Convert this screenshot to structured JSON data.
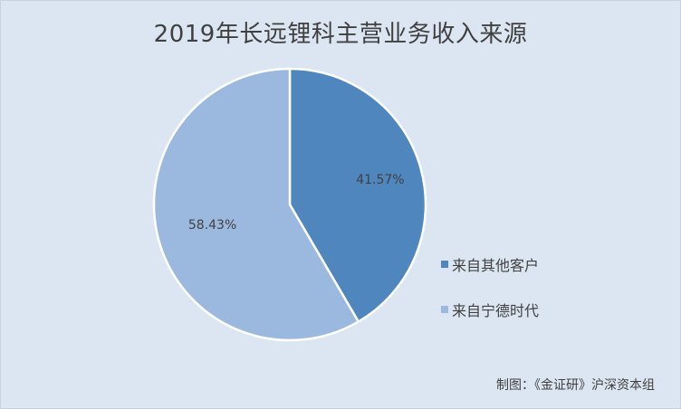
{
  "chart_data": {
    "type": "pie",
    "title": "2019年长远锂科主营业务收入来源",
    "slices": [
      {
        "label": "来自其他客户",
        "value": 41.57,
        "value_label": "41.57%",
        "color": "#4f86bd"
      },
      {
        "label": "来自宁德时代",
        "value": 58.43,
        "value_label": "58.43%",
        "color": "#9bb9df"
      }
    ],
    "legend_position": "right"
  },
  "credit": "制图：《金证研》沪深资本组"
}
